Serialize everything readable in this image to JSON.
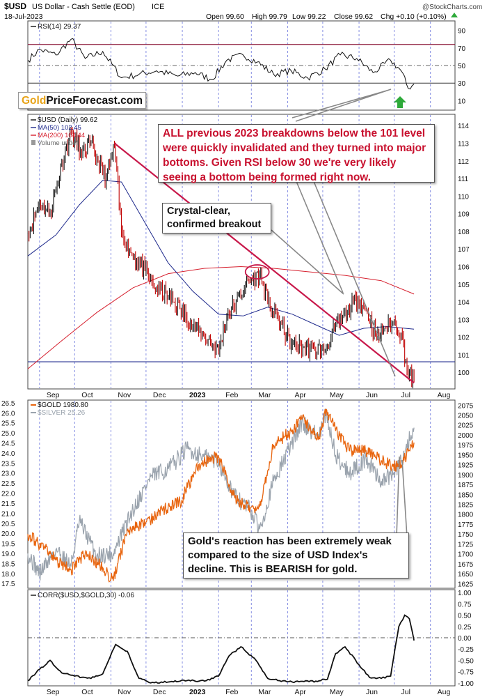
{
  "header": {
    "symbol": "$USD",
    "name": "US Dollar - Cash Settle (EOD)",
    "exchange": "ICE",
    "date": "18-Jul-2023",
    "open": "Open 99.60",
    "high": "High 99.79",
    "low": "Low 99.22",
    "close": "Close 99.62",
    "change": "Chg +0.10 (+0.10%)",
    "watermark": "@StockCharts.com"
  },
  "logo": {
    "part1": "Gold",
    "part2": "PriceForecast.com"
  },
  "months": [
    "Sep",
    "Oct",
    "Nov",
    "Dec",
    "2023",
    "Feb",
    "Mar",
    "Apr",
    "May",
    "Jun",
    "Jul",
    "Aug"
  ],
  "chart_data": [
    {
      "type": "line",
      "panel": "rsi",
      "label": "RSI(14) 29.37",
      "y_ticks": [
        10,
        30,
        50,
        70,
        90
      ],
      "ylim": [
        0,
        100
      ],
      "levels": {
        "overbought": 74,
        "oversold": 30,
        "mid": 50
      },
      "x": [
        "2022-08-22",
        "2022-09-01",
        "2022-09-15",
        "2022-09-28",
        "2022-10-10",
        "2022-10-25",
        "2022-11-10",
        "2022-11-25",
        "2022-12-10",
        "2022-12-28",
        "2023-01-12",
        "2023-01-26",
        "2023-02-08",
        "2023-02-22",
        "2023-03-06",
        "2023-03-20",
        "2023-04-04",
        "2023-04-18",
        "2023-05-03",
        "2023-05-16",
        "2023-05-30",
        "2023-06-13",
        "2023-06-28",
        "2023-07-07",
        "2023-07-13",
        "2023-07-18"
      ],
      "values": [
        56,
        68,
        62,
        80,
        58,
        66,
        36,
        40,
        44,
        38,
        42,
        34,
        56,
        62,
        54,
        40,
        44,
        36,
        46,
        62,
        58,
        42,
        56,
        44,
        24,
        29
      ]
    },
    {
      "type": "line",
      "panel": "usd",
      "label": "$USD (Daily) 99.62",
      "legend": [
        "MA(50) 102.45",
        "MA(200) 104.44",
        "Volume undef"
      ],
      "y_ticks": [
        100,
        101,
        102,
        103,
        104,
        105,
        106,
        107,
        108,
        109,
        110,
        111,
        112,
        113,
        114
      ],
      "ylim": [
        99.1,
        114.6
      ],
      "support_level": 100.6,
      "series": [
        {
          "name": "$USD",
          "x": [
            "2022-08-22",
            "2022-09-01",
            "2022-09-10",
            "2022-09-20",
            "2022-09-28",
            "2022-10-07",
            "2022-10-14",
            "2022-10-21",
            "2022-10-28",
            "2022-11-04",
            "2022-11-10",
            "2022-11-18",
            "2022-11-30",
            "2022-12-08",
            "2022-12-20",
            "2022-12-30",
            "2023-01-10",
            "2023-01-20",
            "2023-02-01",
            "2023-02-08",
            "2023-02-16",
            "2023-02-24",
            "2023-03-08",
            "2023-03-15",
            "2023-03-24",
            "2023-04-04",
            "2023-04-14",
            "2023-04-24",
            "2023-05-03",
            "2023-05-12",
            "2023-05-22",
            "2023-05-31",
            "2023-06-08",
            "2023-06-16",
            "2023-06-23",
            "2023-06-30",
            "2023-07-07",
            "2023-07-13",
            "2023-07-18"
          ],
          "values": [
            107.9,
            109.6,
            109.0,
            111.8,
            113.7,
            112.3,
            113.0,
            112.0,
            111.0,
            112.8,
            108.0,
            106.8,
            105.8,
            104.8,
            104.3,
            103.6,
            102.6,
            102.1,
            101.2,
            103.2,
            104.0,
            104.9,
            105.6,
            104.0,
            103.0,
            101.6,
            101.4,
            101.3,
            101.3,
            102.6,
            103.4,
            104.2,
            103.4,
            102.0,
            102.5,
            102.9,
            102.2,
            99.8,
            99.62
          ]
        },
        {
          "name": "MA(50)",
          "x": [
            "2022-08-22",
            "2022-09-15",
            "2022-10-05",
            "2022-10-25",
            "2022-11-10",
            "2022-11-30",
            "2022-12-20",
            "2023-01-10",
            "2023-02-01",
            "2023-02-22",
            "2023-03-15",
            "2023-04-05",
            "2023-04-25",
            "2023-05-15",
            "2023-06-05",
            "2023-06-25",
            "2023-07-18"
          ],
          "values": [
            106.6,
            107.8,
            109.5,
            110.9,
            110.8,
            108.5,
            106.2,
            104.6,
            103.3,
            103.2,
            103.7,
            103.3,
            102.7,
            102.1,
            102.5,
            102.6,
            102.45
          ]
        },
        {
          "name": "MA(200)",
          "x": [
            "2022-08-22",
            "2022-09-20",
            "2022-10-20",
            "2022-11-20",
            "2022-12-20",
            "2023-01-20",
            "2023-02-20",
            "2023-03-20",
            "2023-04-20",
            "2023-05-20",
            "2023-06-20",
            "2023-07-18"
          ],
          "values": [
            100.2,
            101.8,
            103.4,
            104.8,
            105.6,
            105.9,
            106.0,
            105.9,
            105.7,
            105.5,
            105.2,
            104.44
          ]
        }
      ],
      "trendline": {
        "x": [
          "2022-11-04",
          "2023-07-18"
        ],
        "values": [
          113.0,
          99.4
        ]
      },
      "ellipse_center": {
        "x": "2023-03-06",
        "y": 105.7
      }
    },
    {
      "type": "line",
      "panel": "gold_silver",
      "series": [
        {
          "name": "$GOLD 1980.80",
          "axis": "right",
          "x": [
            "2022-08-22",
            "2022-09-05",
            "2022-09-20",
            "2022-09-28",
            "2022-10-10",
            "2022-10-25",
            "2022-11-03",
            "2022-11-15",
            "2022-12-01",
            "2022-12-15",
            "2022-12-30",
            "2023-01-15",
            "2023-02-01",
            "2023-02-15",
            "2023-02-28",
            "2023-03-08",
            "2023-03-20",
            "2023-04-04",
            "2023-04-13",
            "2023-04-28",
            "2023-05-04",
            "2023-05-12",
            "2023-05-24",
            "2023-06-07",
            "2023-06-20",
            "2023-06-30",
            "2023-07-07",
            "2023-07-18"
          ],
          "values": [
            1750,
            1715,
            1670,
            1660,
            1700,
            1665,
            1632,
            1760,
            1780,
            1810,
            1830,
            1925,
            1945,
            1840,
            1815,
            1820,
            1975,
            2010,
            2040,
            1990,
            2065,
            2010,
            1960,
            1960,
            1935,
            1920,
            1925,
            1980.8
          ]
        },
        {
          "name": "$SILVER 25.26",
          "axis": "left",
          "x": [
            "2022-08-22",
            "2022-09-01",
            "2022-09-15",
            "2022-09-28",
            "2022-10-05",
            "2022-10-20",
            "2022-11-03",
            "2022-11-20",
            "2022-12-05",
            "2022-12-20",
            "2023-01-05",
            "2023-01-20",
            "2023-02-01",
            "2023-02-15",
            "2023-02-28",
            "2023-03-08",
            "2023-03-20",
            "2023-04-04",
            "2023-04-13",
            "2023-04-28",
            "2023-05-04",
            "2023-05-12",
            "2023-05-24",
            "2023-06-07",
            "2023-06-20",
            "2023-06-30",
            "2023-07-07",
            "2023-07-18"
          ],
          "values": [
            19.0,
            18.0,
            19.2,
            18.4,
            20.6,
            18.9,
            19.0,
            21.2,
            22.8,
            23.2,
            24.2,
            23.8,
            23.6,
            21.8,
            21.2,
            20.2,
            22.6,
            24.4,
            25.5,
            24.8,
            26.0,
            23.9,
            23.0,
            23.7,
            22.6,
            22.9,
            23.6,
            25.26
          ]
        }
      ],
      "left_ticks": [
        17.5,
        18.0,
        18.5,
        19.0,
        19.5,
        20.0,
        20.5,
        21.0,
        21.5,
        22.0,
        22.5,
        23.0,
        23.5,
        24.0,
        24.5,
        25.0,
        25.5,
        26.0,
        26.5
      ],
      "right_ticks": [
        1625,
        1650,
        1675,
        1700,
        1725,
        1750,
        1775,
        1800,
        1825,
        1850,
        1875,
        1900,
        1925,
        1950,
        1975,
        2000,
        2025,
        2050,
        2075
      ],
      "left_lim": [
        17.3,
        26.6
      ],
      "right_lim": [
        1615,
        2086
      ]
    },
    {
      "type": "line",
      "panel": "correlation",
      "label": "CORR($USD,$GOLD,30) -0.06",
      "y_ticks": [
        -1.0,
        -0.75,
        -0.5,
        -0.25,
        0.0,
        0.25,
        0.5,
        0.75,
        1.0
      ],
      "ylim": [
        -1.05,
        1.05
      ],
      "x": [
        "2022-08-22",
        "2022-09-01",
        "2022-09-10",
        "2022-09-20",
        "2022-10-01",
        "2022-10-15",
        "2022-10-25",
        "2022-11-05",
        "2022-11-15",
        "2022-11-25",
        "2022-12-05",
        "2022-12-20",
        "2023-01-05",
        "2023-01-20",
        "2023-02-01",
        "2023-02-10",
        "2023-02-20",
        "2023-03-05",
        "2023-03-15",
        "2023-03-25",
        "2023-04-05",
        "2023-04-15",
        "2023-04-25",
        "2023-05-05",
        "2023-05-12",
        "2023-05-20",
        "2023-06-01",
        "2023-06-10",
        "2023-06-20",
        "2023-06-28",
        "2023-07-05",
        "2023-07-10",
        "2023-07-14",
        "2023-07-18"
      ],
      "values": [
        -0.95,
        -0.7,
        -0.5,
        -0.78,
        -0.85,
        -0.9,
        -0.8,
        -0.15,
        -0.3,
        -0.9,
        -1.0,
        -0.98,
        -0.95,
        -0.96,
        -0.85,
        -0.4,
        -0.2,
        -0.5,
        -0.9,
        -0.95,
        -0.98,
        -0.97,
        -0.96,
        -0.92,
        -0.35,
        -0.2,
        -0.6,
        -0.88,
        -0.9,
        -0.85,
        0.25,
        0.5,
        0.42,
        -0.06
      ]
    }
  ],
  "annotations": {
    "rsi_breakdown": "ALL previous 2023 breakdowns below the 101 level were quickly invalidated and they turned into major bottoms. Given RSI below 30 we're very likely seeing a bottom being formed right now.",
    "breakout": "Crystal-clear, confirmed breakout",
    "gold_weak": "Gold's reaction has been extremely weak compared to the size of USD Index's decline. This is BEARISH for gold."
  },
  "colors": {
    "usd_line": "#111111",
    "ma50": "#1f2a8c",
    "ma200": "#d6202e",
    "trendline": "#c8184a",
    "gold": "#e8650f",
    "silver": "#9aa3ad",
    "arrow": "#2eaa3a",
    "month_grid": "#2233cc"
  }
}
